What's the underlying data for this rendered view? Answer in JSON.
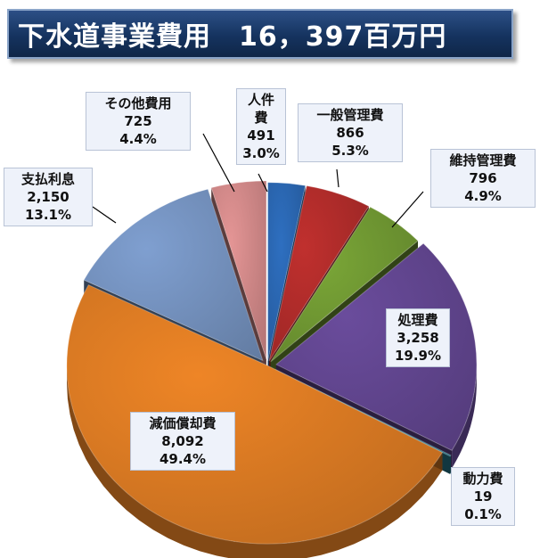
{
  "title": "下水道事業費用　16，397百万円",
  "chart_data": {
    "type": "pie",
    "title": "下水道事業費用　16，397百万円",
    "series": [
      {
        "label": "人件費",
        "value": 491,
        "value_text": "491",
        "percent_text": "3.0%",
        "color": "#2e6fc0"
      },
      {
        "label": "一般管理費",
        "value": 866,
        "value_text": "866",
        "percent_text": "5.3%",
        "color": "#c0302e"
      },
      {
        "label": "維持管理費",
        "value": 796,
        "value_text": "796",
        "percent_text": "4.9%",
        "color": "#7aa637"
      },
      {
        "label": "処理費",
        "value": 3258,
        "value_text": "3,258",
        "percent_text": "19.9%",
        "color": "#6a4c9c"
      },
      {
        "label": "動力費",
        "value": 19,
        "value_text": "19",
        "percent_text": "0.1%",
        "color": "#2a8aa0"
      },
      {
        "label": "減価償却費",
        "value": 8092,
        "value_text": "8,092",
        "percent_text": "49.4%",
        "color": "#ee8526"
      },
      {
        "label": "支払利息",
        "value": 2150,
        "value_text": "2,150",
        "percent_text": "13.1%",
        "color": "#7f9fd0"
      },
      {
        "label": "その他費用",
        "value": 725,
        "value_text": "725",
        "percent_text": "4.4%",
        "color": "#e49595"
      }
    ]
  }
}
